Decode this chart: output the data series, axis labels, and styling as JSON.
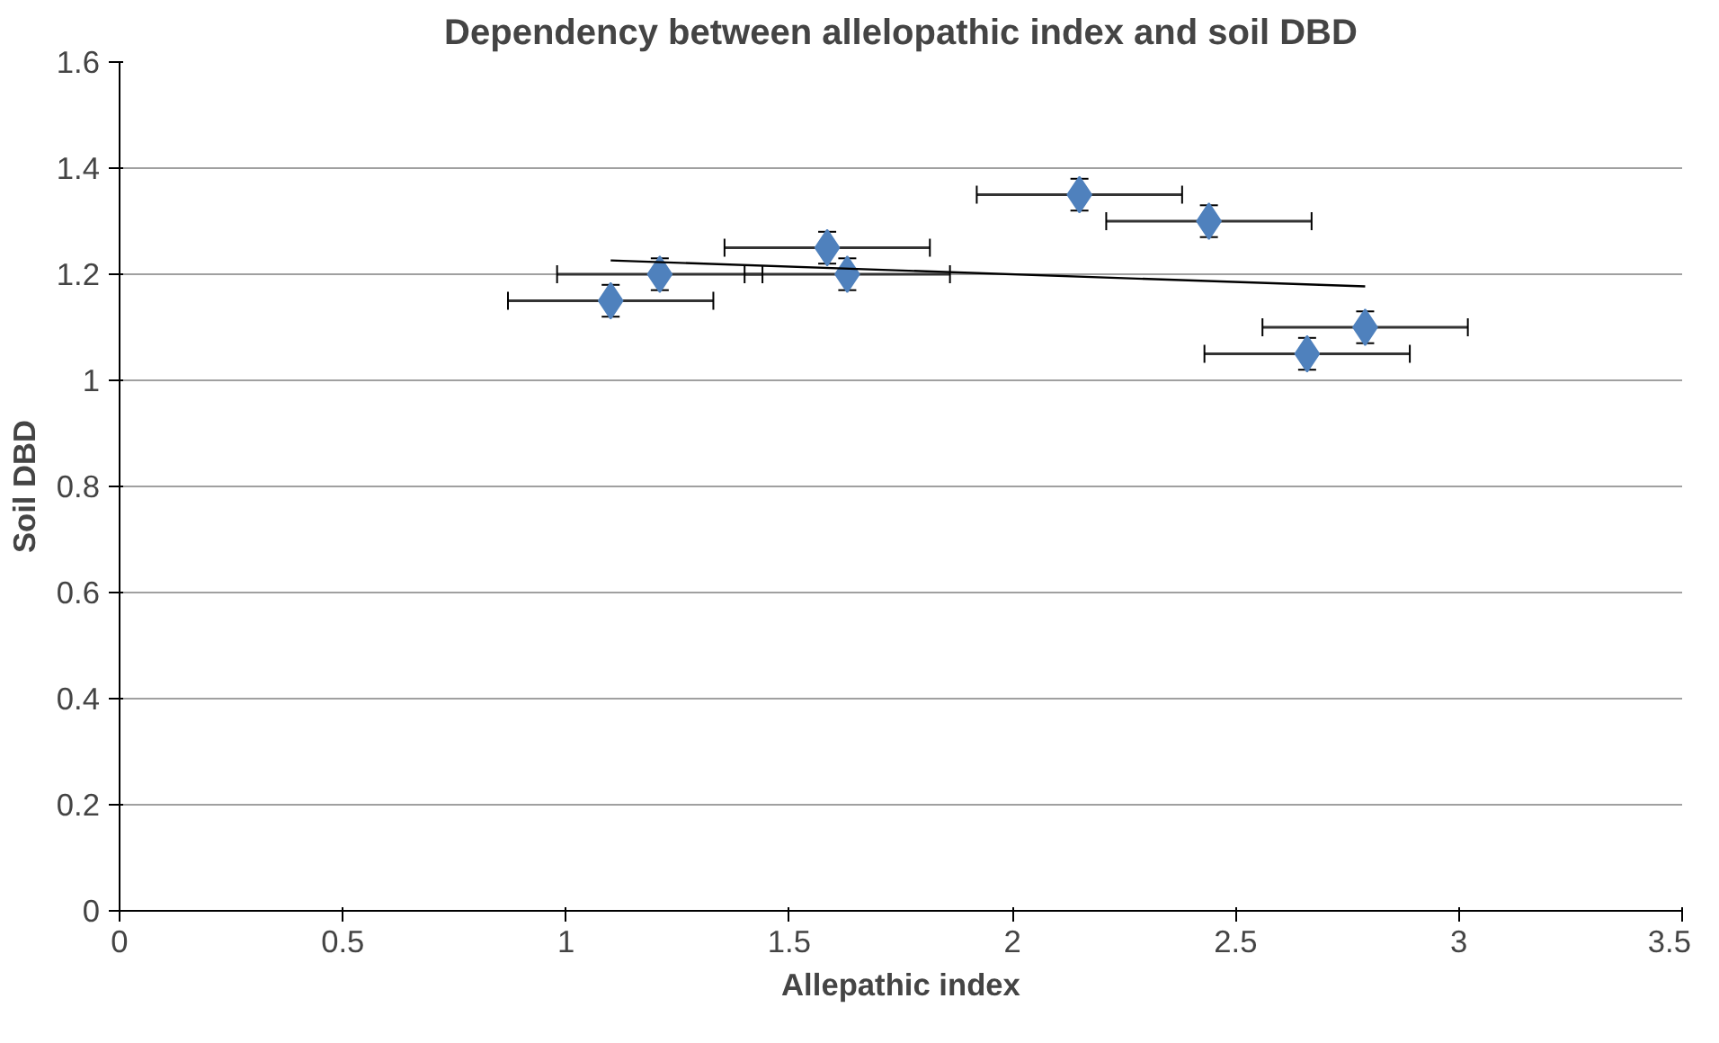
{
  "chart_data": {
    "type": "scatter",
    "title": "Dependency between allelopathic index and soil DBD",
    "xlabel": "Allepathic index",
    "ylabel": "Soil DBD",
    "xlim": [
      0,
      3.5
    ],
    "xticks": [
      0,
      0.5,
      1,
      1.5,
      2,
      2.5,
      3,
      3.5
    ],
    "ylim": [
      0,
      1.6
    ],
    "yticks": [
      0,
      0.2,
      0.4,
      0.6,
      0.8,
      1,
      1.2,
      1.4,
      1.6
    ],
    "grid": "y",
    "series": [
      {
        "color": "#4f81bd",
        "marker": "diamond",
        "x": [
          1.1,
          1.21,
          1.585,
          1.63,
          2.15,
          2.44,
          2.66,
          2.79
        ],
        "values": [
          1.15,
          1.2,
          1.25,
          1.2,
          1.35,
          1.3,
          1.05,
          1.1
        ],
        "errors": [
          0.03,
          0.03,
          0.03,
          0.03,
          0.03,
          0.03,
          0.03,
          0.03
        ],
        "xerrors": [
          0.23,
          0.23,
          0.23,
          0.23,
          0.23,
          0.23,
          0.23,
          0.23
        ]
      },
      {
        "type": "line",
        "color": "#000000",
        "x": [
          1.1,
          2.79
        ],
        "values": [
          1.226,
          1.177
        ],
        "marker": "none"
      }
    ]
  }
}
